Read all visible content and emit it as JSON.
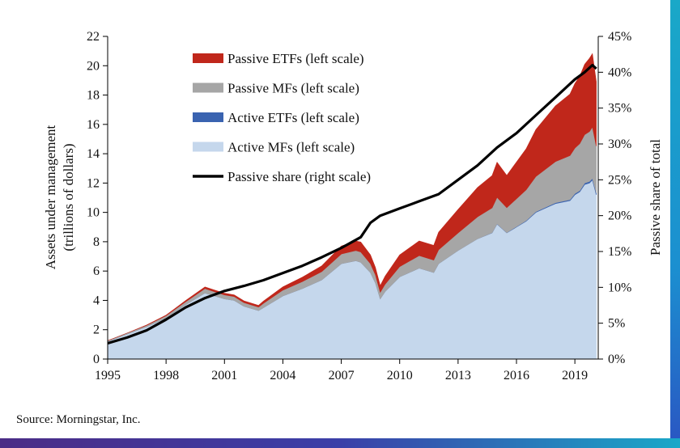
{
  "chart_data": {
    "type": "area",
    "stacked": true,
    "xlabel": "",
    "ylabel": "Assets under management (trillions of dollars)",
    "ylabel_line1": "Assets under management",
    "ylabel_line2": "(trillions of dollars)",
    "y2label": "Passive share of total",
    "xlim": [
      1995,
      2020.2
    ],
    "ylim": [
      0,
      22
    ],
    "y2lim": [
      0,
      45
    ],
    "x_ticks": [
      1995,
      1998,
      2001,
      2004,
      2007,
      2010,
      2013,
      2016,
      2019
    ],
    "x_tick_labels": [
      "1995",
      "1998",
      "2001",
      "2004",
      "2007",
      "2010",
      "2013",
      "2016",
      "2019"
    ],
    "y_ticks": [
      0,
      2,
      4,
      6,
      8,
      10,
      12,
      14,
      16,
      18,
      20,
      22
    ],
    "y_tick_labels": [
      "0",
      "2",
      "4",
      "6",
      "8",
      "10",
      "12",
      "14",
      "16",
      "18",
      "20",
      "22"
    ],
    "y2_ticks": [
      0,
      5,
      10,
      15,
      20,
      25,
      30,
      35,
      40,
      45
    ],
    "y2_tick_labels": [
      "0%",
      "5%",
      "10%",
      "15%",
      "20%",
      "25%",
      "30%",
      "35%",
      "40%",
      "45%"
    ],
    "x": [
      1995,
      1996,
      1997,
      1998,
      1999,
      1999.5,
      2000,
      2000.5,
      2001,
      2001.5,
      2002,
      2002.75,
      2003,
      2004,
      2005,
      2006,
      2007,
      2007.75,
      2008,
      2008.5,
      2008.75,
      2009,
      2009.25,
      2010,
      2011,
      2011.75,
      2012,
      2013,
      2014,
      2014.75,
      2015,
      2015.5,
      2016,
      2016.5,
      2017,
      2018,
      2018.75,
      2019,
      2019.25,
      2019.5,
      2019.75,
      2019.9,
      2020.1
    ],
    "series": [
      {
        "name": "Active MFs (left scale)",
        "color": "#c5d7ec",
        "values": [
          1.2,
          1.7,
          2.2,
          2.8,
          3.7,
          4.1,
          4.5,
          4.3,
          4.1,
          4.0,
          3.6,
          3.3,
          3.5,
          4.3,
          4.8,
          5.4,
          6.5,
          6.7,
          6.6,
          5.9,
          5.2,
          4.1,
          4.6,
          5.6,
          6.2,
          5.9,
          6.5,
          7.4,
          8.2,
          8.6,
          9.2,
          8.6,
          9.0,
          9.4,
          10.0,
          10.6,
          10.8,
          11.2,
          11.4,
          11.9,
          12.0,
          12.2,
          11.2
        ]
      },
      {
        "name": "Active ETFs (left scale)",
        "color": "#3a63b0",
        "values": [
          0,
          0,
          0,
          0,
          0,
          0,
          0,
          0,
          0,
          0,
          0,
          0,
          0,
          0,
          0,
          0,
          0,
          0,
          0,
          0,
          0,
          0,
          0,
          0,
          0,
          0,
          0,
          0,
          0,
          0.01,
          0.02,
          0.02,
          0.03,
          0.04,
          0.05,
          0.06,
          0.07,
          0.08,
          0.09,
          0.1,
          0.11,
          0.12,
          0.12
        ]
      },
      {
        "name": "Passive MFs (left scale)",
        "color": "#a6a6a6",
        "values": [
          0.05,
          0.07,
          0.1,
          0.15,
          0.2,
          0.25,
          0.3,
          0.28,
          0.27,
          0.26,
          0.25,
          0.24,
          0.3,
          0.4,
          0.48,
          0.56,
          0.66,
          0.7,
          0.7,
          0.6,
          0.55,
          0.45,
          0.5,
          0.7,
          0.85,
          0.85,
          0.95,
          1.2,
          1.5,
          1.7,
          1.8,
          1.7,
          1.9,
          2.1,
          2.4,
          2.8,
          3.0,
          3.1,
          3.2,
          3.3,
          3.4,
          3.5,
          3.2
        ]
      },
      {
        "name": "Passive ETFs (left scale)",
        "color": "#c0271b",
        "values": [
          0.0,
          0.0,
          0.02,
          0.04,
          0.08,
          0.1,
          0.12,
          0.12,
          0.12,
          0.12,
          0.12,
          0.12,
          0.15,
          0.22,
          0.3,
          0.4,
          0.55,
          0.65,
          0.68,
          0.6,
          0.5,
          0.45,
          0.55,
          0.8,
          1.0,
          1.0,
          1.2,
          1.6,
          2.0,
          2.2,
          2.4,
          2.2,
          2.5,
          2.8,
          3.2,
          3.8,
          4.2,
          4.4,
          4.6,
          4.8,
          5.0,
          5.0,
          4.4
        ]
      }
    ],
    "line_series": {
      "name": "Passive share (right scale)",
      "axis": "right",
      "color": "#000000",
      "x": [
        1995,
        1996,
        1997,
        1998,
        1999,
        2000,
        2001,
        2002,
        2003,
        2004,
        2005,
        2006,
        2007,
        2008,
        2008.5,
        2009,
        2010,
        2011,
        2012,
        2013,
        2014,
        2015,
        2016,
        2017,
        2018,
        2019,
        2019.5,
        2019.9,
        2020.1
      ],
      "values": [
        2.2,
        3.0,
        4.0,
        5.5,
        7.2,
        8.5,
        9.5,
        10.2,
        11.0,
        12.0,
        13.0,
        14.2,
        15.5,
        17.0,
        19.0,
        20.0,
        21.0,
        22.0,
        23.0,
        25.0,
        27.0,
        29.5,
        31.5,
        34.0,
        36.5,
        39.0,
        40.0,
        41.0,
        40.5
      ]
    },
    "legend": {
      "placement": "top-left",
      "entries": [
        {
          "label": "Passive ETFs (left scale)",
          "color": "#c0271b",
          "kind": "area"
        },
        {
          "label": "Passive MFs (left scale)",
          "color": "#a6a6a6",
          "kind": "area"
        },
        {
          "label": "Active ETFs (left scale)",
          "color": "#3a63b0",
          "kind": "area"
        },
        {
          "label": "Active MFs (left scale)",
          "color": "#c5d7ec",
          "kind": "area"
        },
        {
          "label": "Passive share (right scale)",
          "color": "#000000",
          "kind": "line"
        }
      ]
    }
  },
  "source_note": "Source:  Morningstar, Inc."
}
